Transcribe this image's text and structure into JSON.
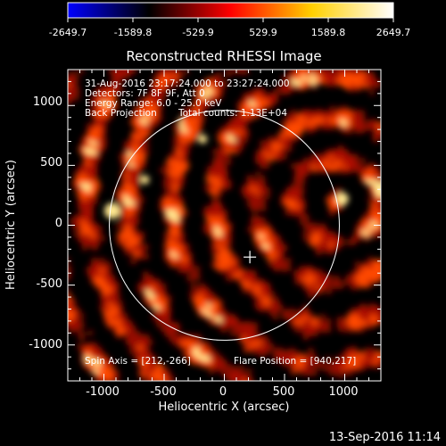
{
  "colorbar": {
    "ticks": [
      "-2649.7",
      "-1589.8",
      "-529.9",
      "529.9",
      "1589.8",
      "2649.7"
    ],
    "gradient": [
      "#0000ff",
      "#000000",
      "#ff0000",
      "#ffd000",
      "#ffffff"
    ]
  },
  "plot": {
    "title": "Reconstructed RHESSI Image",
    "xlabel": "Heliocentric X (arcsec)",
    "ylabel": "Heliocentric Y (arcsec)",
    "x_ticks": [
      "-1000",
      "-500",
      "0",
      "500",
      "1000"
    ],
    "y_ticks": [
      "1000",
      "500",
      "0",
      "-500",
      "-1000"
    ],
    "xlim": [
      -1300,
      1300
    ],
    "ylim": [
      -1300,
      1300
    ],
    "solar_disk_radius_arcsec": 955,
    "map_colors": {
      "low": "#000000",
      "mid": "#b01000",
      "high": "#ff4a00",
      "peak": "#ffe890"
    }
  },
  "annotations": {
    "time_range": "31-Aug-2016 23:17:24.000 to 23:27:24.000",
    "detectors": "Detectors: 7F 8F 9F, Att 0",
    "energy": "Energy Range: 6.0 - 25.0 keV",
    "method": "Back Projection",
    "counts": "Total counts: 1.13E+04",
    "spin_axis": "Spin Axis = [212,-266]",
    "flare_position": "Flare Position = [940,217]"
  },
  "markers": {
    "spin_axis_xy": [
      212,
      -266
    ]
  },
  "footer": {
    "timestamp": "13-Sep-2016 11:14"
  }
}
